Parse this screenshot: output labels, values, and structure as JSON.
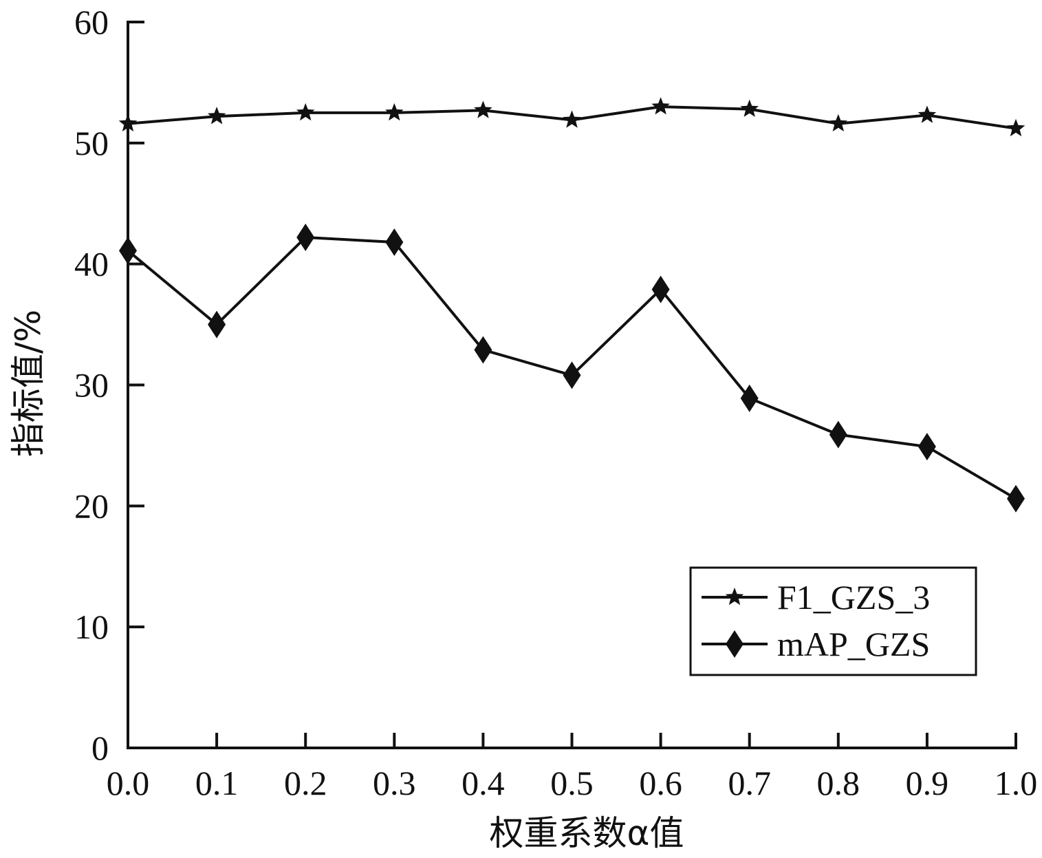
{
  "chart_data": {
    "type": "line",
    "title": "",
    "xlabel": "权重系数α值",
    "ylabel": "指标值/%",
    "x": [
      0.0,
      0.1,
      0.2,
      0.3,
      0.4,
      0.5,
      0.6,
      0.7,
      0.8,
      0.9,
      1.0
    ],
    "x_tick_labels": [
      "0.0",
      "0.1",
      "0.2",
      "0.3",
      "0.4",
      "0.5",
      "0.6",
      "0.7",
      "0.8",
      "0.9",
      "1.0"
    ],
    "y_ticks": [
      0,
      10,
      20,
      30,
      40,
      50,
      60
    ],
    "y_tick_labels": [
      "0",
      "10",
      "20",
      "30",
      "40",
      "50",
      "60"
    ],
    "xlim": [
      0.0,
      1.0
    ],
    "ylim": [
      0,
      60
    ],
    "grid": false,
    "legend_position": "lower-right",
    "series": [
      {
        "name": "F1_GZS_3",
        "marker": "star",
        "values": [
          51.6,
          52.2,
          52.5,
          52.5,
          52.7,
          51.9,
          53.0,
          52.8,
          51.6,
          52.3,
          51.2
        ]
      },
      {
        "name": "mAP_GZS",
        "marker": "diamond",
        "values": [
          41.1,
          35.0,
          42.2,
          41.8,
          32.9,
          30.8,
          37.9,
          28.9,
          25.9,
          24.9,
          20.6
        ]
      }
    ],
    "colors": {
      "line": "#111111",
      "background": "#ffffff"
    }
  }
}
